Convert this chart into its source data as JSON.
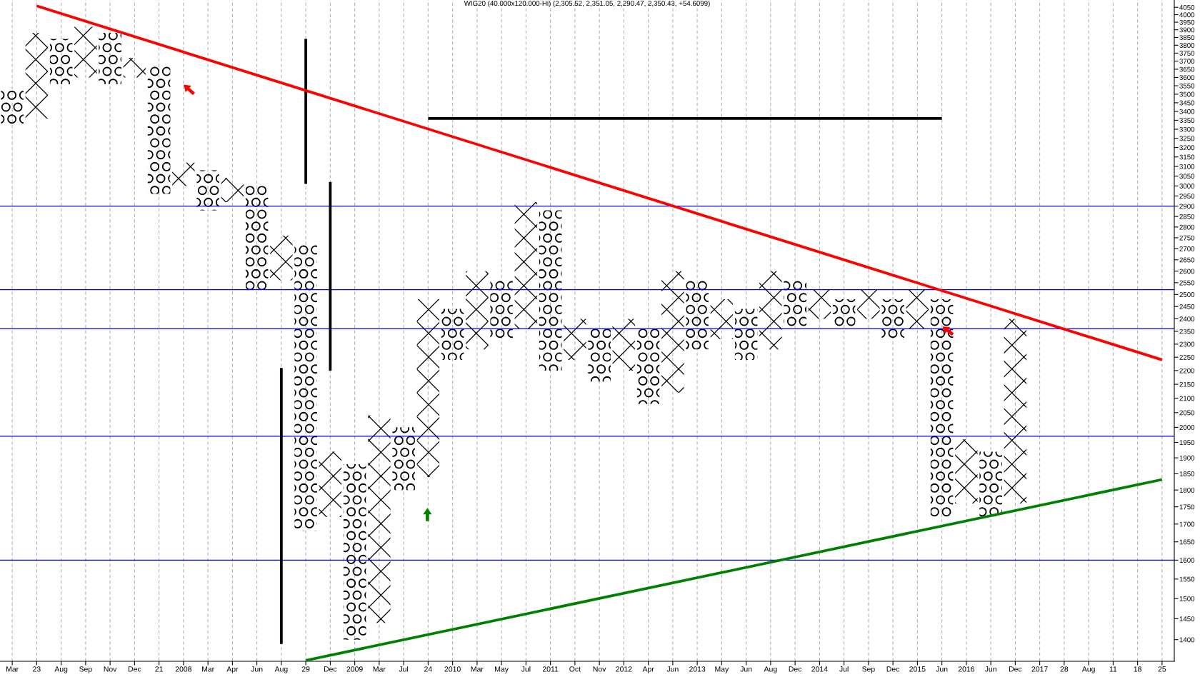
{
  "chart_data": {
    "type": "bar",
    "title": "WIG20 (40.000x120.000-Hi) (2,305.52, 2,351.05, 2,290.47, 2,350.43, +54.6099)",
    "categories": [
      "Mar",
      "23",
      "Aug",
      "Sep",
      "Nov",
      "Dec",
      "21",
      "2008",
      "Mar",
      "Apr",
      "Jun",
      "Aug",
      "29",
      "Dec",
      "2009",
      "Mar",
      "Jul",
      "24",
      "2010",
      "Mar",
      "May",
      "Jul",
      "2011",
      "Oct",
      "Nov",
      "2012",
      "Apr",
      "Jun",
      "2013",
      "May",
      "Jun",
      "Aug",
      "Dec",
      "2014",
      "Jul",
      "Sep",
      "Dec",
      "2015",
      "Jun",
      "2016",
      "Jun",
      "Dec",
      "2017",
      "28",
      "Aug",
      "11",
      "18",
      "25"
    ],
    "ylim": [
      1350,
      4100
    ],
    "yticks": [
      1400,
      1450,
      1500,
      1550,
      1600,
      1650,
      1700,
      1750,
      1800,
      1850,
      1900,
      1950,
      2000,
      2050,
      2100,
      2150,
      2200,
      2250,
      2300,
      2350,
      2400,
      2450,
      2500,
      2550,
      2600,
      2650,
      2700,
      2750,
      2800,
      2850,
      2900,
      2950,
      3000,
      3050,
      3100,
      3150,
      3200,
      3250,
      3300,
      3350,
      3400,
      3450,
      3500,
      3550,
      3600,
      3650,
      3700,
      3750,
      3800,
      3850,
      3900,
      3950,
      4000,
      4050
    ],
    "log": "y",
    "grid": "x",
    "series": [
      {
        "marker": "cross",
        "color": "#000000",
        "base": [
          null,
          3360,
          null,
          3600,
          null,
          3600,
          null,
          3000,
          null,
          2920,
          null,
          2560,
          null,
          1720,
          null,
          1440,
          null,
          1840,
          null,
          2280,
          null,
          2360,
          null,
          2240,
          null,
          2200,
          null,
          2120,
          null,
          2320,
          null,
          2280,
          null,
          2400,
          null,
          2400,
          null,
          2360,
          null,
          1760,
          null,
          1760,
          null,
          null,
          null,
          null,
          null,
          null
        ],
        "values": [
          null,
          520,
          null,
          320,
          null,
          120,
          null,
          120,
          null,
          120,
          null,
          200,
          null,
          200,
          null,
          600,
          null,
          640,
          null,
          320,
          null,
          560,
          null,
          160,
          null,
          200,
          null,
          480,
          null,
          160,
          null,
          320,
          null,
          120,
          null,
          120,
          null,
          160,
          null,
          200,
          null,
          640,
          null,
          null,
          null,
          null,
          null,
          null
        ]
      },
      {
        "marker": "circle",
        "color": "#000000",
        "base": [
          3320,
          null,
          3560,
          null,
          3560,
          null,
          2960,
          null,
          2880,
          null,
          2520,
          null,
          1680,
          null,
          1400,
          null,
          1800,
          null,
          2240,
          null,
          2320,
          null,
          2200,
          null,
          2160,
          null,
          2080,
          null,
          2280,
          null,
          2240,
          null,
          2360,
          null,
          2360,
          null,
          2320,
          null,
          1720,
          null,
          1720,
          null,
          null,
          null,
          null,
          null,
          null,
          null
        ],
        "values": [
          200,
          null,
          280,
          null,
          320,
          null,
          720,
          null,
          200,
          null,
          480,
          null,
          1040,
          null,
          480,
          null,
          200,
          null,
          200,
          null,
          240,
          null,
          680,
          null,
          200,
          null,
          280,
          null,
          280,
          null,
          200,
          null,
          200,
          null,
          120,
          null,
          160,
          null,
          760,
          null,
          200,
          null,
          null,
          null,
          null,
          null,
          null,
          null
        ]
      },
      {
        "marker": "none",
        "color": "#000000",
        "base": [
          null,
          null,
          null,
          null,
          null,
          null,
          null,
          null,
          null,
          null,
          null,
          1390,
          3010,
          2200,
          null,
          null,
          null,
          null,
          null,
          null,
          null,
          null,
          null,
          null,
          null,
          null,
          null,
          null,
          null,
          null,
          null,
          null,
          null,
          null,
          null,
          null,
          null,
          null,
          null,
          null,
          null,
          null,
          null,
          null,
          null,
          null,
          null,
          null
        ],
        "values": [
          null,
          null,
          null,
          null,
          null,
          null,
          null,
          null,
          null,
          null,
          null,
          820,
          830,
          820,
          null,
          null,
          null,
          null,
          null,
          null,
          null,
          null,
          null,
          null,
          null,
          null,
          null,
          null,
          null,
          null,
          null,
          null,
          null,
          null,
          null,
          null,
          null,
          null,
          null,
          null,
          null,
          null,
          null,
          null,
          null,
          null,
          null,
          null
        ]
      },
      {
        "type": "line",
        "color": "#000000",
        "values": [
          null,
          null,
          null,
          null,
          null,
          null,
          null,
          null,
          null,
          null,
          null,
          null,
          null,
          null,
          null,
          null,
          null,
          3360,
          3360,
          3360,
          3360,
          3360,
          3360,
          3360,
          3360,
          3360,
          3360,
          3360,
          3360,
          3360,
          3360,
          3360,
          3360,
          3360,
          3360,
          3360,
          3360,
          3360,
          3360,
          null,
          null,
          null,
          null,
          null,
          null,
          null,
          null,
          null
        ]
      },
      {
        "type": "line",
        "color": "#ff0000",
        "x": [
          "23",
          "25"
        ],
        "values": [
          4060,
          2240
        ]
      },
      {
        "type": "line",
        "color": "#008000",
        "x": [
          "29",
          "25"
        ],
        "values": [
          1352,
          1832
        ]
      }
    ],
    "ref_lines": [
      {
        "axis": "y",
        "value": 2900,
        "color": "#0000ff"
      },
      {
        "axis": "y",
        "value": 2520,
        "color": "#0000ff"
      },
      {
        "axis": "y",
        "value": 2360,
        "color": "#0000ff"
      },
      {
        "axis": "y",
        "value": 1970,
        "color": "#0000ff"
      },
      {
        "axis": "y",
        "value": 1600,
        "color": "#0000ff"
      }
    ]
  }
}
